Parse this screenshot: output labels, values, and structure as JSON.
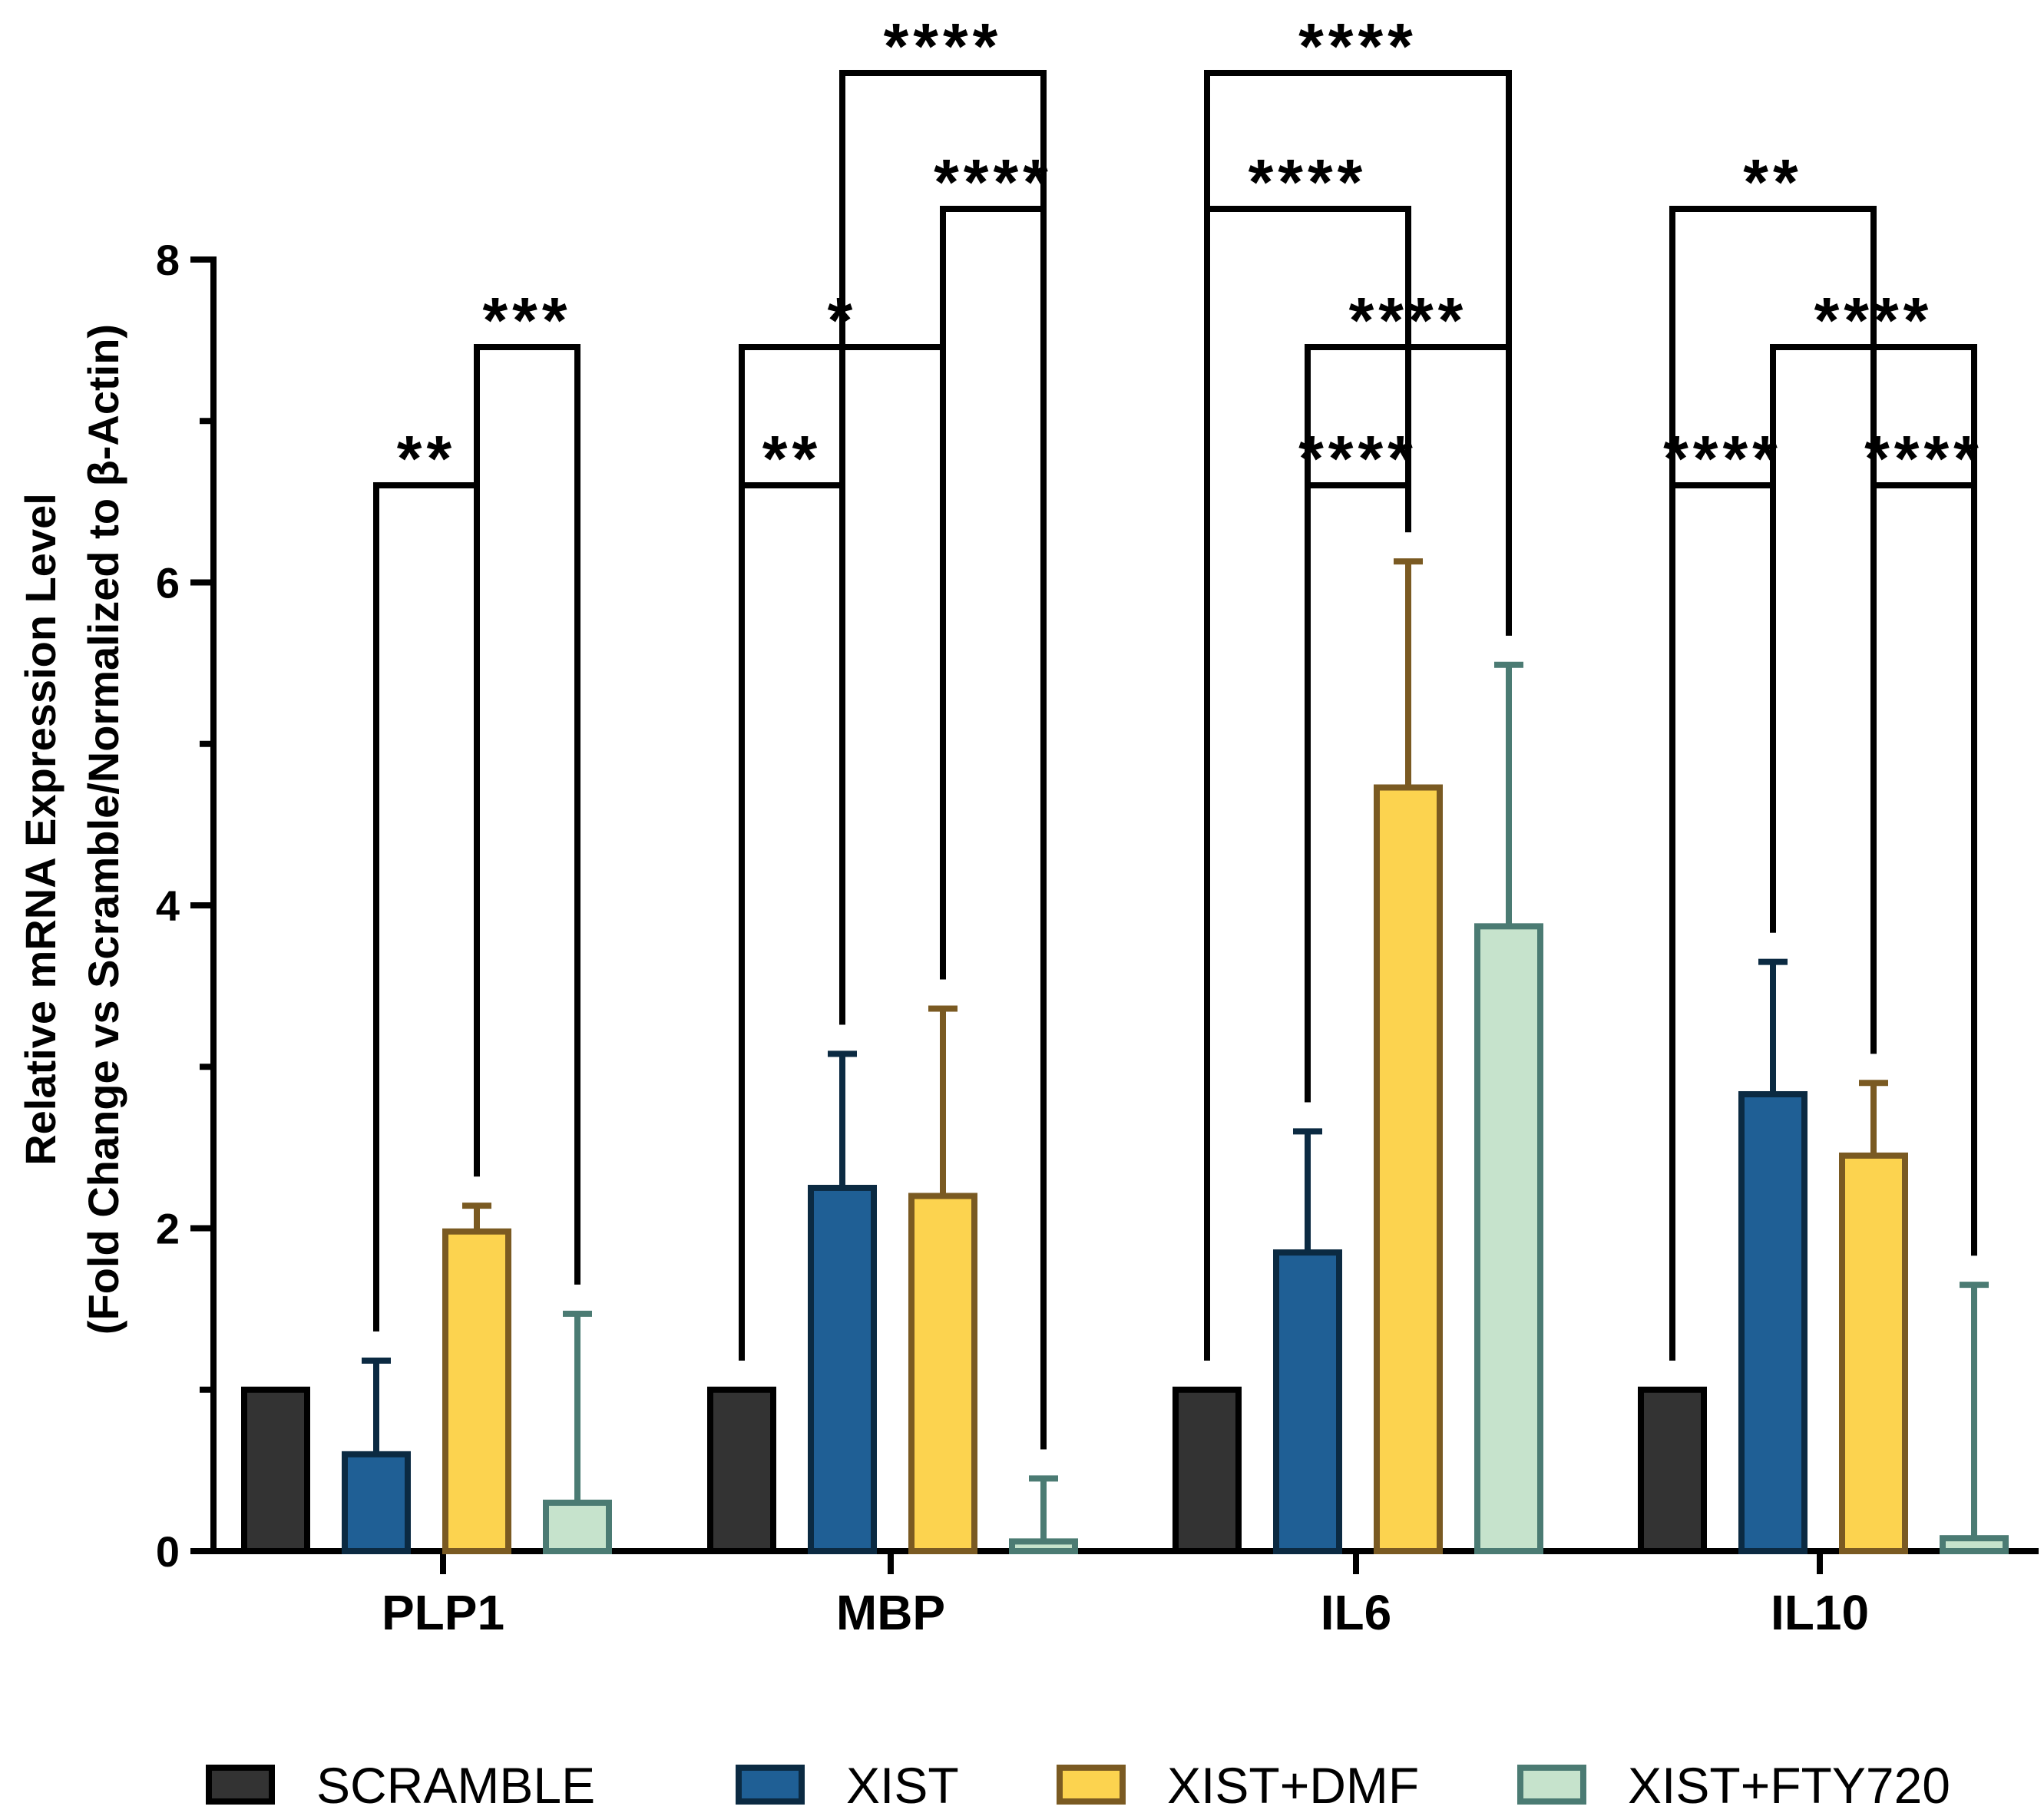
{
  "chart_data": {
    "type": "bar",
    "title": "",
    "xlabel": "",
    "ylabel_lines": [
      "Relative mRNA Expression  Level",
      "(Fold Change vs Scramble/Normalized to β-Actin)"
    ],
    "ylim": [
      0,
      8
    ],
    "yticks": [
      "0",
      "2",
      "4",
      "6",
      "8"
    ],
    "categories": [
      "PLP1",
      "MBP",
      "IL6",
      "IL10"
    ],
    "series": [
      {
        "name": "SCRAMBLE",
        "fill": "#333333",
        "stroke": "#000000",
        "values": [
          1.0,
          1.0,
          1.0,
          1.0
        ],
        "errors": [
          0,
          0,
          0,
          0
        ]
      },
      {
        "name": "XIST",
        "fill": "#1f5f95",
        "stroke": "#0b2a42",
        "values": [
          0.6,
          2.25,
          1.85,
          2.83
        ],
        "errors": [
          0.58,
          0.83,
          0.75,
          0.82
        ]
      },
      {
        "name": "XIST+DMF",
        "fill": "#fcd34f",
        "stroke": "#7a5a22",
        "values": [
          1.98,
          2.2,
          4.73,
          2.45
        ],
        "errors": [
          0.16,
          1.16,
          1.4,
          0.45
        ]
      },
      {
        "name": "XIST+FTY720",
        "fill": "#c6e3cc",
        "stroke": "#4b7b73",
        "values": [
          0.3,
          0.06,
          3.87,
          0.08
        ],
        "errors": [
          1.17,
          0.39,
          1.62,
          1.57
        ]
      }
    ],
    "significance": [
      {
        "category": 0,
        "from": 1,
        "to": 2,
        "label": "**"
      },
      {
        "category": 0,
        "from": 2,
        "to": 3,
        "label": "***"
      },
      {
        "category": 1,
        "from": 0,
        "to": 1,
        "label": "**"
      },
      {
        "category": 1,
        "from": 0,
        "to": 2,
        "label": "*"
      },
      {
        "category": 1,
        "from": 2,
        "to": 3,
        "label": "****"
      },
      {
        "category": 1,
        "from": 1,
        "to": 3,
        "label": "****"
      },
      {
        "category": 2,
        "from": 1,
        "to": 2,
        "label": "****"
      },
      {
        "category": 2,
        "from": 1,
        "to": 3,
        "label": "****"
      },
      {
        "category": 2,
        "from": 0,
        "to": 2,
        "label": "****"
      },
      {
        "category": 2,
        "from": 0,
        "to": 3,
        "label": "****"
      },
      {
        "category": 3,
        "from": 2,
        "to": 3,
        "label": "****"
      },
      {
        "category": 3,
        "from": 0,
        "to": 1,
        "label": "****"
      },
      {
        "category": 3,
        "from": 1,
        "to": 3,
        "label": "****"
      },
      {
        "category": 3,
        "from": 0,
        "to": 2,
        "label": "**"
      }
    ],
    "legend_position": "bottom"
  }
}
